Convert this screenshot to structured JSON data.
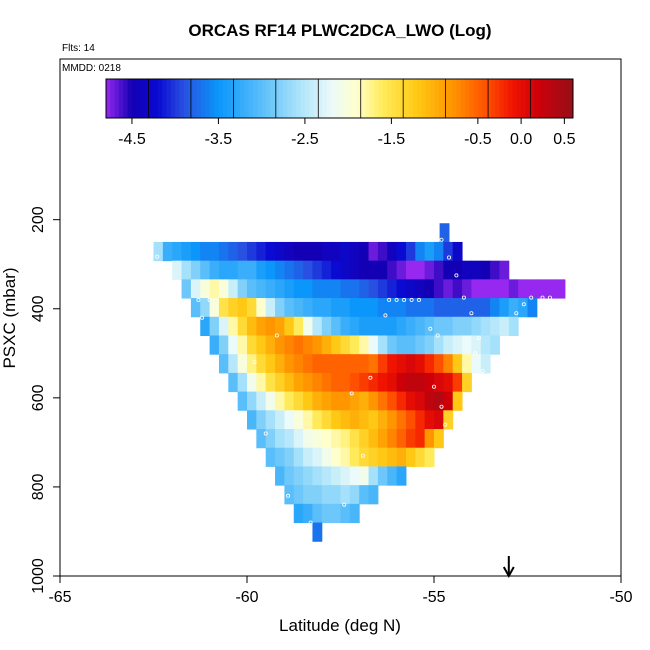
{
  "chart_data": {
    "type": "heatmap",
    "title": "ORCAS RF14 PLWC2DCA_LWO (Log)",
    "flights_note": "Flts: 14",
    "date_note": "MMDD: 0218",
    "xlabel": "Latitude (deg N)",
    "ylabel": "PSXC (mbar)",
    "xlim": [
      -65,
      -50
    ],
    "ylim": [
      1000,
      0
    ],
    "x_ticks": [
      "-65",
      "-60",
      "-55",
      "-50"
    ],
    "x_tick_values": [
      -65,
      -60,
      -55,
      -50
    ],
    "y_ticks": [
      "200",
      "400",
      "600",
      "800",
      "1000"
    ],
    "y_tick_values": [
      200,
      400,
      600,
      800,
      1000
    ],
    "colorbar": {
      "range": [
        -4.8,
        0.6
      ],
      "ticks": [
        "-4.5",
        "-3.5",
        "-2.5",
        "-1.5",
        "-0.5",
        "0.0",
        "0.5"
      ],
      "tick_values": [
        -4.5,
        -3.5,
        -2.5,
        -1.5,
        -0.5,
        0.0,
        0.5
      ]
    },
    "arrow_marker": {
      "latitude": -53.0,
      "direction": "down"
    },
    "bin_width_deg": 0.25,
    "bin_height_mbar": 42,
    "rows": [
      {
        "p": 229,
        "lat_start": -54.85,
        "values": [
          -3.8
        ]
      },
      {
        "p": 271,
        "lat_start": -62.5,
        "values": [
          -2.6,
          -3.2,
          -3.3,
          -3.4,
          -3.5,
          -3.6,
          -3.6,
          -3.7,
          -3.8,
          -3.9,
          -4.0,
          -4.1,
          -4.2,
          -4.3,
          -4.4,
          -4.5,
          -4.5,
          -4.5,
          -4.4,
          -4.4,
          -4.3,
          -4.4,
          -4.5,
          -4.7,
          -4.6,
          -4.4,
          -4.2,
          -4.0,
          -3.6,
          -3.4,
          -3.6,
          -4.0,
          -4.3
        ]
      },
      {
        "p": 313,
        "lat_start": -62.0,
        "values": [
          -2.3,
          -2.6,
          -2.8,
          -3.0,
          -3.2,
          -3.3,
          -3.3,
          -3.2,
          -3.2,
          -3.4,
          -3.5,
          -3.6,
          -3.7,
          -3.8,
          -3.9,
          -4.0,
          -4.1,
          -4.2,
          -4.3,
          -4.4,
          -4.5,
          -4.5,
          -4.5,
          -4.6,
          -4.7,
          -4.8,
          -4.8,
          -4.7,
          -4.6,
          -4.5,
          -4.5,
          -4.4,
          -4.4,
          -4.5,
          -4.6,
          -4.7
        ]
      },
      {
        "p": 355,
        "lat_start": -61.75,
        "values": [
          -2.9,
          -2.3,
          -2.0,
          -1.8,
          -2.0,
          -2.4,
          -2.8,
          -3.0,
          -3.1,
          -3.2,
          -3.3,
          -3.4,
          -3.5,
          -3.5,
          -3.6,
          -3.6,
          -3.6,
          -3.7,
          -3.7,
          -3.8,
          -3.9,
          -4.0,
          -4.1,
          -4.2,
          -4.3,
          -4.4,
          -4.5,
          -4.6,
          -4.7,
          -4.6,
          -4.7,
          -4.8,
          -4.9,
          -4.9,
          -4.8,
          -4.7,
          -4.8,
          -4.9,
          -5.0,
          -5.0,
          -4.9
        ]
      },
      {
        "p": 397,
        "lat_start": -61.5,
        "values": [
          -3.0,
          -2.7,
          -2.0,
          -1.5,
          -1.3,
          -1.2,
          -1.4,
          -1.9,
          -2.4,
          -2.8,
          -3.0,
          -3.1,
          -3.2,
          -3.3,
          -3.3,
          -3.4,
          -3.4,
          -3.5,
          -3.5,
          -3.5,
          -3.6,
          -3.6,
          -3.6,
          -3.7,
          -3.7,
          -3.7,
          -3.8,
          -3.8,
          -3.8,
          -3.8,
          -3.8,
          -3.8,
          -3.6,
          -3.4,
          -3.2,
          -3.3,
          -3.6
        ]
      },
      {
        "p": 439,
        "lat_start": -61.25,
        "values": [
          -3.3,
          -2.8,
          -2.3,
          -1.8,
          -1.4,
          -1.1,
          -0.9,
          -0.8,
          -0.9,
          -1.2,
          -1.6,
          -2.1,
          -2.5,
          -2.8,
          -3.0,
          -3.2,
          -3.3,
          -3.4,
          -3.4,
          -3.4,
          -3.4,
          -3.3,
          -3.2,
          -3.1,
          -3.0,
          -2.9,
          -2.9,
          -2.8,
          -2.8,
          -2.7,
          -2.6,
          -2.5,
          -2.4,
          -2.6
        ]
      },
      {
        "p": 481,
        "lat_start": -61.0,
        "values": [
          -3.2,
          -2.8,
          -2.2,
          -1.8,
          -1.4,
          -1.2,
          -1.0,
          -0.8,
          -0.7,
          -0.6,
          -0.7,
          -0.8,
          -1.0,
          -1.2,
          -1.4,
          -1.6,
          -1.8,
          -2.2,
          -2.6,
          -2.9,
          -3.0,
          -3.0,
          -2.9,
          -2.8,
          -2.6,
          -2.4,
          -2.3,
          -2.2,
          -2.3,
          -2.5,
          -2.6
        ]
      },
      {
        "p": 523,
        "lat_start": -60.75,
        "values": [
          -3.0,
          -2.5,
          -2.0,
          -1.7,
          -1.4,
          -1.2,
          -1.0,
          -0.8,
          -0.7,
          -0.6,
          -0.5,
          -0.5,
          -0.5,
          -0.5,
          -0.5,
          -0.5,
          -0.6,
          -0.3,
          -0.1,
          0.0,
          0.1,
          0.0,
          -0.2,
          -0.4,
          -0.7,
          -1.2,
          -1.8,
          -2.2,
          -2.4
        ]
      },
      {
        "p": 565,
        "lat_start": -60.5,
        "values": [
          -3.0,
          -2.6,
          -2.1,
          -1.8,
          -1.5,
          -1.3,
          -1.1,
          -0.9,
          -0.8,
          -0.7,
          -0.6,
          -0.5,
          -0.5,
          -0.4,
          -0.3,
          -0.2,
          -0.1,
          0.0,
          0.2,
          0.3,
          0.3,
          0.2,
          0.1,
          0.0,
          -0.3,
          -1.3
        ]
      },
      {
        "p": 607,
        "lat_start": -60.25,
        "values": [
          -3.0,
          -2.7,
          -2.4,
          -2.1,
          -1.8,
          -1.6,
          -1.4,
          -1.2,
          -1.0,
          -0.9,
          -0.8,
          -0.8,
          -0.9,
          -1.0,
          -0.8,
          -0.6,
          -0.4,
          -0.2,
          0.0,
          0.1,
          0.3,
          0.4,
          0.2,
          -1.2
        ]
      },
      {
        "p": 649,
        "lat_start": -60.0,
        "values": [
          -3.1,
          -2.8,
          -2.6,
          -2.4,
          -2.2,
          -2.0,
          -1.8,
          -1.6,
          -1.4,
          -1.2,
          -1.1,
          -1.0,
          -1.1,
          -1.2,
          -1.0,
          -0.8,
          -0.6,
          -0.4,
          -0.2,
          0.0,
          0.1,
          -1.3
        ]
      },
      {
        "p": 691,
        "lat_start": -59.75,
        "values": [
          -3.0,
          -2.8,
          -2.6,
          -2.5,
          -2.3,
          -2.1,
          -2.0,
          -1.9,
          -1.8,
          -1.7,
          -1.5,
          -1.3,
          -1.1,
          -0.9,
          -0.7,
          -0.5,
          -0.3,
          -0.2,
          -0.8,
          -1.2
        ]
      },
      {
        "p": 733,
        "lat_start": -59.5,
        "values": [
          -3.0,
          -2.9,
          -2.8,
          -2.6,
          -2.4,
          -2.3,
          -2.1,
          -1.9,
          -1.8,
          -1.6,
          -1.4,
          -1.3,
          -1.2,
          -1.1,
          -1.0,
          -1.2,
          -1.4,
          -1.6
        ]
      },
      {
        "p": 775,
        "lat_start": -59.25,
        "values": [
          -3.1,
          -2.9,
          -2.8,
          -2.7,
          -2.6,
          -2.5,
          -2.4,
          -2.3,
          -2.2,
          -2.1,
          -2.6,
          -2.9,
          -3.1,
          -3.3
        ]
      },
      {
        "p": 817,
        "lat_start": -59.0,
        "values": [
          -3.0,
          -2.9,
          -2.8,
          -2.8,
          -2.7,
          -2.7,
          -2.6,
          -2.7,
          -3.0,
          -3.1
        ]
      },
      {
        "p": 859,
        "lat_start": -58.75,
        "values": [
          -3.3,
          -3.2,
          -3.0,
          -2.9,
          -2.9,
          -3.0,
          -3.1
        ]
      },
      {
        "p": 901,
        "lat_start": -58.25,
        "values": [
          -3.7
        ]
      }
    ],
    "sample_points": [
      [
        -62.4,
        283
      ],
      [
        -61.3,
        380
      ],
      [
        -61.0,
        380
      ],
      [
        -61.2,
        420
      ],
      [
        -59.2,
        460
      ],
      [
        -59.8,
        520
      ],
      [
        -59.5,
        680
      ],
      [
        -59.3,
        760
      ],
      [
        -58.9,
        820
      ],
      [
        -58.3,
        880
      ],
      [
        -57.4,
        840
      ],
      [
        -57.2,
        590
      ],
      [
        -56.7,
        555
      ],
      [
        -56.9,
        730
      ],
      [
        -56.2,
        380
      ],
      [
        -56.0,
        380
      ],
      [
        -55.8,
        380
      ],
      [
        -55.6,
        380
      ],
      [
        -55.4,
        380
      ],
      [
        -56.3,
        415
      ],
      [
        -55.1,
        445
      ],
      [
        -54.9,
        460
      ],
      [
        -55.0,
        575
      ],
      [
        -54.8,
        620
      ],
      [
        -54.7,
        660
      ],
      [
        -54.6,
        700
      ],
      [
        -54.8,
        245
      ],
      [
        -54.6,
        285
      ],
      [
        -54.4,
        325
      ],
      [
        -54.2,
        375
      ],
      [
        -54.0,
        410
      ],
      [
        -53.8,
        465
      ],
      [
        -53.9,
        500
      ],
      [
        -53.7,
        540
      ],
      [
        -52.6,
        390
      ],
      [
        -52.4,
        375
      ],
      [
        -52.1,
        375
      ],
      [
        -51.9,
        375
      ],
      [
        -52.8,
        410
      ],
      [
        -52.6,
        440
      ]
    ]
  }
}
